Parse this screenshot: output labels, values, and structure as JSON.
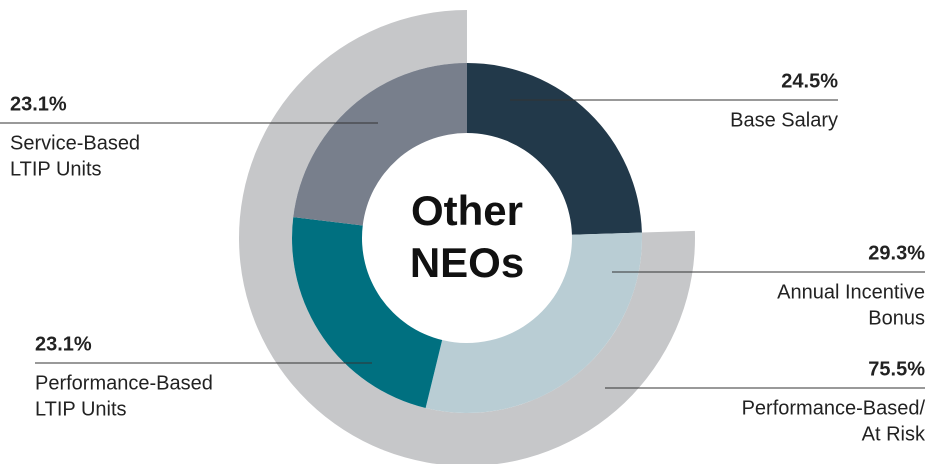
{
  "chart_data": {
    "type": "donut",
    "center_label": [
      "Other",
      "NEOs"
    ],
    "categories": [
      [
        "Base Salary"
      ],
      [
        "Annual Incentive",
        "Bonus"
      ],
      [
        "Performance-Based",
        "LTIP Units"
      ],
      [
        "Service-Based",
        "LTIP Units"
      ]
    ],
    "values": [
      24.5,
      29.3,
      23.1,
      23.1
    ],
    "value_labels": [
      "24.5%",
      "29.3%",
      "23.1%",
      "23.1%"
    ],
    "colors": [
      "#22394a",
      "#b9cdd4",
      "#007080",
      "#787f8c"
    ],
    "outer": {
      "name": [
        "Performance-Based/",
        "At Risk"
      ],
      "value": 75.5,
      "value_label": "75.5%",
      "color": "#c6c7c9"
    }
  }
}
